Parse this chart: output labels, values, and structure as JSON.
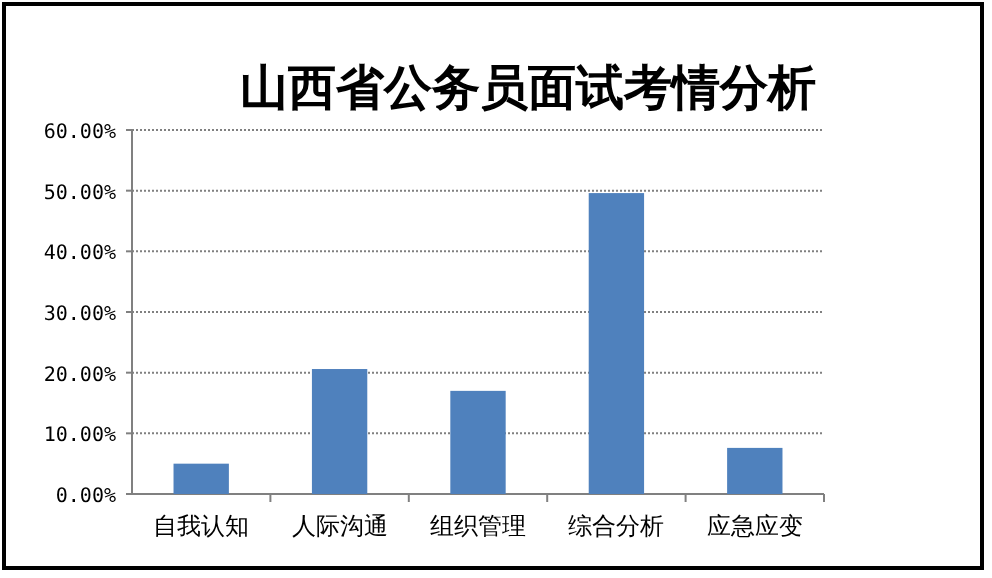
{
  "chart_data": {
    "type": "bar",
    "title": "山西省公务员面试考情分析",
    "categories": [
      "自我认知",
      "人际沟通",
      "组织管理",
      "综合分析",
      "应急应变"
    ],
    "values": [
      5.0,
      20.6,
      17.0,
      49.6,
      7.6
    ],
    "color": "#4f81bd",
    "ylim": [
      0,
      60
    ],
    "yticks": [
      {
        "value": 0,
        "label": "0.00%"
      },
      {
        "value": 10,
        "label": "10.00%"
      },
      {
        "value": 20,
        "label": "20.00%"
      },
      {
        "value": 30,
        "label": "30.00%"
      },
      {
        "value": 40,
        "label": "40.00%"
      },
      {
        "value": 50,
        "label": "50.00%"
      },
      {
        "value": 60,
        "label": "60.00%"
      }
    ],
    "grid": "y"
  }
}
